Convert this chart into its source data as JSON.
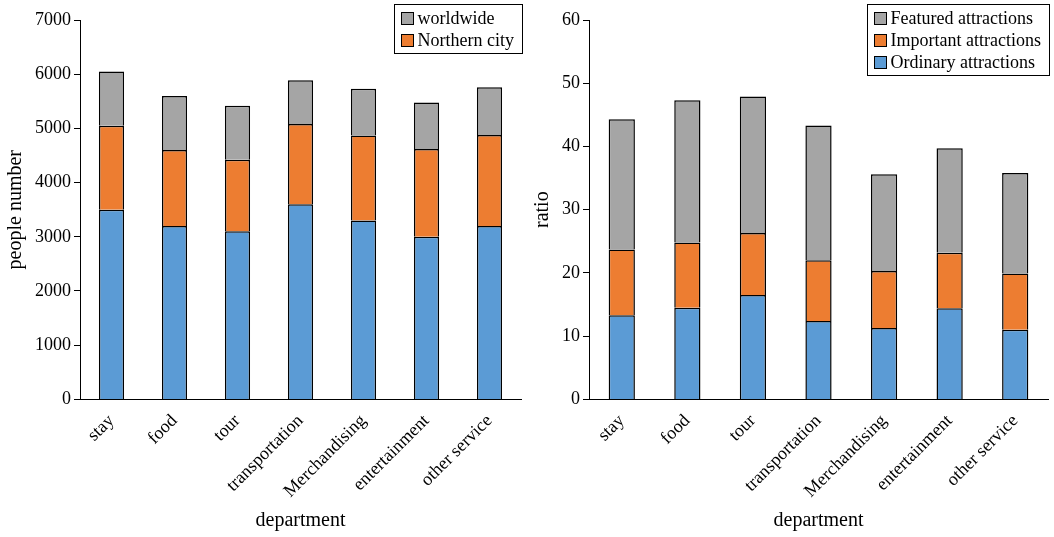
{
  "chart_data": [
    {
      "type": "bar",
      "stacked": true,
      "xlabel": "department",
      "ylabel": "people number",
      "categories": [
        "stay",
        "food",
        "tour",
        "transportation",
        "Merchandising",
        "entertainment",
        "other service"
      ],
      "ylim": [
        0,
        7000
      ],
      "yticks": [
        0,
        1000,
        2000,
        3000,
        4000,
        5000,
        6000,
        7000
      ],
      "grid": false,
      "legend": "top right",
      "series": [
        {
          "color": "#5b9bd5",
          "values": [
            3500,
            3200,
            3100,
            3600,
            3300,
            3000,
            3200
          ]
        },
        {
          "name": "Northern city",
          "color": "#ed7d31",
          "values": [
            1550,
            1400,
            1320,
            1480,
            1570,
            1620,
            1680
          ]
        },
        {
          "name": "worldwide",
          "color": "#a5a5a5",
          "values": [
            1000,
            1000,
            1000,
            810,
            860,
            860,
            880
          ]
        }
      ]
    },
    {
      "type": "bar",
      "stacked": true,
      "xlabel": "department",
      "ylabel": "ratio",
      "categories": [
        "stay",
        "food",
        "tour",
        "transportation",
        "Merchandising",
        "entertainment",
        "other service"
      ],
      "ylim": [
        0,
        60
      ],
      "yticks": [
        0,
        10,
        20,
        30,
        40,
        50,
        60
      ],
      "grid": false,
      "legend": "top right",
      "series": [
        {
          "name": "Ordinary attractions",
          "color": "#5b9bd5",
          "values": [
            13.3,
            14.5,
            16.5,
            12.4,
            11.3,
            14.4,
            11.0
          ]
        },
        {
          "name": "Important attractions",
          "color": "#ed7d31",
          "values": [
            10.4,
            10.3,
            9.8,
            9.6,
            9.0,
            8.8,
            8.9
          ]
        },
        {
          "name": "Featured attractions",
          "color": "#a5a5a5",
          "values": [
            20.6,
            22.5,
            21.6,
            21.3,
            15.3,
            16.5,
            15.9
          ]
        }
      ]
    }
  ]
}
